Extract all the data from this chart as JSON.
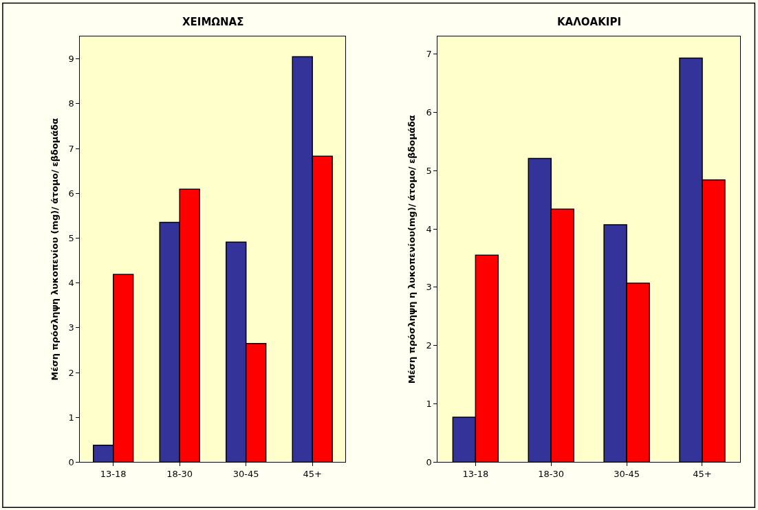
{
  "chart_data": [
    {
      "type": "bar",
      "title": "ΧΕΙΜΩΝΑΣ",
      "ylabel": "Μέση πρόσληψη λυκοπενίου (mg)/ άτομο/ εβδομάδα",
      "categories": [
        "13-18",
        "18-30",
        "30-45",
        "45+"
      ],
      "series": [
        {
          "color": "#333399",
          "values": [
            0.38,
            5.35,
            4.91,
            9.05
          ]
        },
        {
          "color": "#ff0000",
          "values": [
            4.19,
            6.09,
            2.65,
            6.83
          ]
        }
      ],
      "ylim": [
        0,
        9.5
      ],
      "yticks": [
        0,
        1,
        2,
        3,
        4,
        5,
        6,
        7,
        8,
        9
      ],
      "grid": false
    },
    {
      "type": "bar",
      "title": "ΚΑΛΟΑΚΙΡΙ",
      "ylabel": "Μέση πρόσληψη η λυκοπενίου(mg)/ άτομο/ εβδομάδα",
      "categories": [
        "13-18",
        "18-30",
        "30-45",
        "45+"
      ],
      "series": [
        {
          "color": "#333399",
          "values": [
            0.77,
            5.21,
            4.07,
            6.93
          ]
        },
        {
          "color": "#ff0000",
          "values": [
            3.55,
            4.34,
            3.07,
            4.84
          ]
        }
      ],
      "ylim": [
        0,
        7.3
      ],
      "yticks": [
        0,
        1,
        2,
        3,
        4,
        5,
        6,
        7
      ],
      "grid": false
    }
  ]
}
